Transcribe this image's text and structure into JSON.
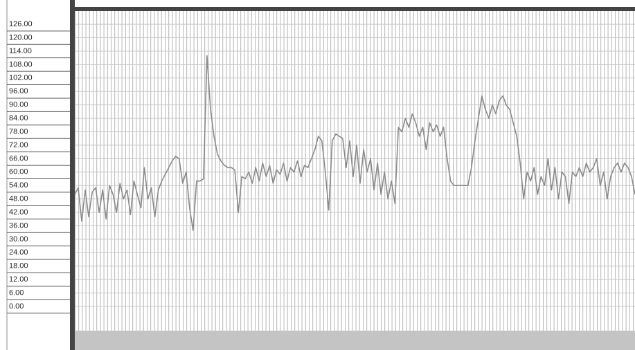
{
  "chart_data": {
    "type": "line",
    "color": "#8a8a8a",
    "grid": true,
    "ylim": [
      -10.8,
      131.9
    ],
    "yticks": [
      {
        "value": 126,
        "label": "126.00"
      },
      {
        "value": 120,
        "label": "120.00"
      },
      {
        "value": 114,
        "label": "114.00"
      },
      {
        "value": 108,
        "label": "108.00"
      },
      {
        "value": 102,
        "label": "102.00"
      },
      {
        "value": 96,
        "label": "96.00"
      },
      {
        "value": 90,
        "label": "90.00"
      },
      {
        "value": 84,
        "label": "84.00"
      },
      {
        "value": 78,
        "label": "78.00"
      },
      {
        "value": 72,
        "label": "72.00"
      },
      {
        "value": 66,
        "label": "66.00"
      },
      {
        "value": 60,
        "label": "60.00"
      },
      {
        "value": 54,
        "label": "54.00"
      },
      {
        "value": 48,
        "label": "48.00"
      },
      {
        "value": 42,
        "label": "42.00"
      },
      {
        "value": 36,
        "label": "36.00"
      },
      {
        "value": 30,
        "label": "30.00"
      },
      {
        "value": 24,
        "label": "24.00"
      },
      {
        "value": 18,
        "label": "18.00"
      },
      {
        "value": 12,
        "label": "12.00"
      },
      {
        "value": 6,
        "label": "6.00"
      },
      {
        "value": 0,
        "label": "0.00"
      }
    ],
    "values": [
      50,
      53,
      38,
      52,
      40,
      51,
      53,
      42,
      52,
      39,
      54,
      50,
      42,
      55,
      48,
      52,
      41,
      56,
      50,
      44,
      62,
      48,
      53,
      40,
      52,
      56,
      59,
      62,
      65,
      67,
      66,
      55,
      60,
      44,
      34,
      56,
      56,
      57,
      112,
      88,
      76,
      68,
      65,
      63,
      62,
      62,
      61,
      42,
      58,
      57,
      60,
      55,
      62,
      56,
      64,
      58,
      63,
      55,
      61,
      59,
      64,
      56,
      62,
      60,
      65,
      58,
      63,
      62,
      66,
      70,
      76,
      74,
      60,
      43,
      74,
      77,
      76,
      75,
      62,
      74,
      58,
      72,
      55,
      70,
      60,
      66,
      52,
      64,
      50,
      60,
      48,
      56,
      46,
      80,
      78,
      84,
      80,
      86,
      82,
      76,
      80,
      70,
      82,
      78,
      81,
      76,
      80,
      66,
      56,
      54,
      54,
      54,
      54,
      54,
      62,
      74,
      84,
      94,
      88,
      84,
      90,
      86,
      92,
      94,
      90,
      88,
      82,
      76,
      64,
      48,
      60,
      56,
      62,
      50,
      58,
      54,
      66,
      52,
      62,
      48,
      60,
      58,
      46,
      60,
      58,
      62,
      58,
      64,
      60,
      62,
      66,
      54,
      60,
      48,
      58,
      62,
      64,
      60,
      64,
      62,
      58,
      50
    ]
  }
}
